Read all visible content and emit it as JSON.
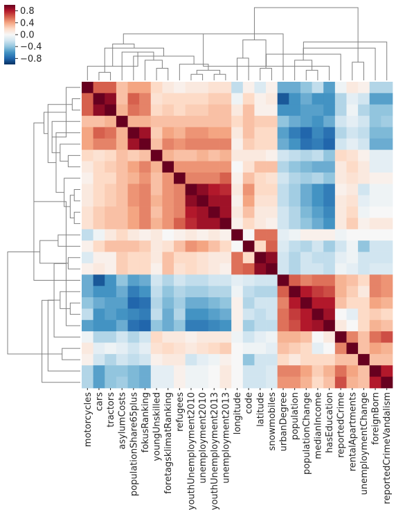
{
  "chart_data": {
    "type": "heatmap",
    "title": "",
    "labels": [
      "motorcycles",
      "cars",
      "tractors",
      "asylumCosts",
      "populationShare65plus",
      "fokusRanking",
      "youngUnskilled",
      "foretagsklimatRanking",
      "refugees",
      "youthUnemployment2010",
      "unemployment2010",
      "youthUnemployment2013",
      "unemployment2013",
      "longitude",
      "code",
      "latitude",
      "snowmobiles",
      "urbanDegree",
      "population",
      "populationChange",
      "medianIncome",
      "hasEducation",
      "reportedCrime",
      "rentalApartments",
      "unemploymentChange",
      "foreignBorn",
      "reportedCrimeVandalism"
    ],
    "x_tick_labels": [
      "motorcycles",
      "cars",
      "tractors",
      "asylumCosts",
      "populationShare65plus",
      "fokusRanking",
      "youngUnskilled",
      "foretagsklimatRanking",
      "refugees",
      "youthUnemployment2010",
      "unemployment2010",
      "youthUnemployment2013",
      "unemployment2013",
      "longitude",
      "code",
      "latitude",
      "snowmobiles",
      "urbanDegree",
      "population",
      "populationChange",
      "medianIncome",
      "hasEducation",
      "reportedCrime",
      "rentalApartments",
      "unemploymentChange",
      "foreignBorn",
      "reportedCrimeVandalism"
    ],
    "values": [
      [
        1.0,
        0.6,
        0.6,
        0.3,
        0.4,
        0.4,
        0.2,
        0.1,
        0.05,
        0.1,
        0.1,
        0.15,
        0.15,
        -0.25,
        0.05,
        -0.15,
        0.05,
        -0.5,
        -0.5,
        -0.4,
        -0.25,
        -0.55,
        -0.05,
        0.1,
        0.05,
        -0.3,
        -0.3
      ],
      [
        0.6,
        1.0,
        0.9,
        0.3,
        0.6,
        0.5,
        0.15,
        0.2,
        0.2,
        0.2,
        0.2,
        0.25,
        0.25,
        -0.05,
        0.2,
        0.05,
        0.1,
        -0.85,
        -0.6,
        -0.5,
        -0.6,
        -0.6,
        -0.3,
        -0.1,
        -0.2,
        -0.55,
        -0.55
      ],
      [
        0.6,
        0.9,
        1.0,
        0.35,
        0.55,
        0.5,
        0.2,
        0.25,
        0.2,
        0.25,
        0.25,
        0.3,
        0.3,
        0.1,
        0.3,
        0.05,
        0.05,
        -0.6,
        -0.6,
        -0.55,
        -0.55,
        -0.6,
        -0.3,
        -0.05,
        -0.3,
        -0.4,
        -0.4
      ],
      [
        0.3,
        0.3,
        0.35,
        1.0,
        0.35,
        0.35,
        0.3,
        0.3,
        0.3,
        0.3,
        0.3,
        0.3,
        0.3,
        0.2,
        0.3,
        0.25,
        0.25,
        -0.4,
        -0.5,
        -0.55,
        -0.6,
        -0.5,
        -0.2,
        -0.1,
        -0.2,
        -0.4,
        -0.35
      ],
      [
        0.4,
        0.6,
        0.55,
        0.35,
        1.0,
        0.85,
        0.25,
        0.4,
        0.35,
        0.45,
        0.45,
        0.4,
        0.4,
        0.1,
        0.3,
        0.2,
        0.2,
        -0.55,
        -0.7,
        -0.8,
        -0.65,
        -0.75,
        -0.3,
        -0.2,
        -0.25,
        -0.45,
        -0.45
      ],
      [
        0.4,
        0.5,
        0.5,
        0.35,
        0.85,
        1.0,
        0.3,
        0.5,
        0.45,
        0.5,
        0.5,
        0.5,
        0.5,
        0.05,
        0.25,
        0.2,
        0.2,
        -0.5,
        -0.6,
        -0.75,
        -0.7,
        -0.8,
        -0.2,
        -0.1,
        -0.2,
        -0.5,
        -0.5
      ],
      [
        0.2,
        0.15,
        0.2,
        0.3,
        0.25,
        0.3,
        1.0,
        0.35,
        0.3,
        0.3,
        0.35,
        0.3,
        0.35,
        0.1,
        0.1,
        0.1,
        0.05,
        -0.2,
        -0.25,
        -0.3,
        -0.25,
        -0.4,
        0.2,
        0.15,
        0.05,
        -0.1,
        -0.1
      ],
      [
        0.1,
        0.2,
        0.25,
        0.3,
        0.4,
        0.5,
        0.35,
        1.0,
        0.45,
        0.45,
        0.45,
        0.45,
        0.45,
        0.0,
        0.15,
        0.3,
        0.3,
        -0.3,
        -0.4,
        -0.45,
        -0.5,
        -0.5,
        0.1,
        0.2,
        0.1,
        -0.1,
        -0.1
      ],
      [
        0.05,
        0.2,
        0.2,
        0.3,
        0.35,
        0.45,
        0.3,
        0.45,
        1.0,
        0.5,
        0.5,
        0.5,
        0.6,
        0.05,
        0.3,
        0.2,
        0.15,
        -0.2,
        -0.3,
        -0.35,
        -0.3,
        -0.4,
        0.1,
        0.15,
        0.1,
        0.05,
        0.05
      ],
      [
        0.1,
        0.2,
        0.25,
        0.3,
        0.45,
        0.5,
        0.3,
        0.45,
        0.5,
        1.0,
        0.9,
        0.8,
        0.75,
        0.1,
        0.45,
        0.2,
        0.2,
        -0.25,
        -0.35,
        -0.5,
        -0.6,
        -0.7,
        0.05,
        0.1,
        -0.2,
        -0.05,
        -0.05
      ],
      [
        0.1,
        0.2,
        0.25,
        0.3,
        0.45,
        0.5,
        0.35,
        0.45,
        0.5,
        0.9,
        1.0,
        0.85,
        0.85,
        0.05,
        0.4,
        0.15,
        0.15,
        -0.25,
        -0.35,
        -0.5,
        -0.6,
        -0.7,
        0.1,
        0.15,
        -0.1,
        -0.05,
        -0.05
      ],
      [
        0.15,
        0.25,
        0.3,
        0.3,
        0.4,
        0.5,
        0.3,
        0.45,
        0.5,
        0.8,
        0.85,
        1.0,
        0.85,
        0.1,
        0.3,
        0.1,
        0.1,
        -0.2,
        -0.3,
        -0.45,
        -0.55,
        -0.65,
        0.1,
        0.2,
        -0.05,
        0.0,
        0.0
      ],
      [
        0.15,
        0.25,
        0.3,
        0.3,
        0.4,
        0.5,
        0.35,
        0.45,
        0.6,
        0.75,
        0.85,
        0.85,
        1.0,
        0.05,
        0.2,
        0.1,
        0.05,
        -0.2,
        -0.3,
        -0.4,
        -0.5,
        -0.6,
        0.1,
        0.25,
        0.05,
        0.1,
        0.1
      ],
      [
        -0.25,
        -0.05,
        0.1,
        0.2,
        0.1,
        0.05,
        0.1,
        0.0,
        0.05,
        0.1,
        0.05,
        0.1,
        0.05,
        1.0,
        0.0,
        0.55,
        0.55,
        -0.1,
        -0.05,
        0.05,
        0.05,
        0.05,
        -0.05,
        0.0,
        0.0,
        0.0,
        0.0
      ],
      [
        0.05,
        0.2,
        0.3,
        0.3,
        0.3,
        0.25,
        0.1,
        0.15,
        0.3,
        0.45,
        0.4,
        0.3,
        0.2,
        0.0,
        1.0,
        0.2,
        0.6,
        -0.15,
        -0.25,
        -0.3,
        -0.2,
        -0.35,
        -0.2,
        -0.05,
        -0.4,
        -0.2,
        -0.2
      ],
      [
        -0.15,
        0.05,
        0.05,
        0.25,
        0.2,
        0.2,
        0.1,
        0.3,
        0.2,
        0.2,
        0.15,
        0.1,
        0.1,
        0.55,
        0.2,
        1.0,
        0.9,
        -0.2,
        -0.3,
        -0.2,
        -0.25,
        -0.25,
        -0.1,
        -0.05,
        -0.2,
        -0.2,
        -0.2
      ],
      [
        0.05,
        0.1,
        0.05,
        0.25,
        0.2,
        0.2,
        0.05,
        0.3,
        0.15,
        0.2,
        0.15,
        0.1,
        0.05,
        0.55,
        0.6,
        0.9,
        1.0,
        -0.2,
        -0.3,
        -0.2,
        -0.2,
        -0.25,
        -0.05,
        -0.1,
        -0.2,
        -0.15,
        -0.15
      ],
      [
        -0.5,
        -0.85,
        -0.6,
        -0.4,
        -0.55,
        -0.5,
        -0.2,
        -0.3,
        -0.2,
        -0.25,
        -0.25,
        -0.2,
        -0.2,
        -0.1,
        -0.15,
        -0.2,
        -0.2,
        1.0,
        0.6,
        0.5,
        0.55,
        0.55,
        0.35,
        0.3,
        0.2,
        0.5,
        0.45
      ],
      [
        -0.5,
        -0.6,
        -0.6,
        -0.5,
        -0.7,
        -0.6,
        -0.25,
        -0.4,
        -0.3,
        -0.35,
        -0.35,
        -0.3,
        -0.3,
        -0.05,
        -0.25,
        -0.3,
        -0.3,
        0.6,
        1.0,
        0.8,
        0.7,
        0.65,
        0.35,
        0.25,
        0.1,
        0.5,
        0.45
      ],
      [
        -0.4,
        -0.5,
        -0.55,
        -0.55,
        -0.8,
        -0.75,
        -0.3,
        -0.45,
        -0.35,
        -0.5,
        -0.5,
        -0.45,
        -0.4,
        0.05,
        -0.3,
        -0.2,
        -0.2,
        0.5,
        0.8,
        1.0,
        0.8,
        0.8,
        0.3,
        0.2,
        0.2,
        0.4,
        0.35
      ],
      [
        -0.25,
        -0.6,
        -0.55,
        -0.6,
        -0.65,
        -0.7,
        -0.25,
        -0.5,
        -0.3,
        -0.6,
        -0.6,
        -0.55,
        -0.5,
        0.05,
        -0.2,
        -0.25,
        -0.2,
        0.55,
        0.7,
        0.8,
        1.0,
        0.85,
        0.0,
        -0.1,
        0.2,
        0.25,
        0.2
      ],
      [
        -0.55,
        -0.6,
        -0.6,
        -0.5,
        -0.75,
        -0.8,
        -0.4,
        -0.5,
        -0.4,
        -0.7,
        -0.7,
        -0.65,
        -0.6,
        0.05,
        -0.35,
        -0.25,
        -0.25,
        0.55,
        0.65,
        0.8,
        0.85,
        1.0,
        0.1,
        0.0,
        0.2,
        0.35,
        0.3
      ],
      [
        -0.05,
        -0.3,
        -0.3,
        -0.2,
        -0.3,
        -0.2,
        0.2,
        0.1,
        0.1,
        0.05,
        0.1,
        0.1,
        0.1,
        -0.05,
        -0.2,
        -0.1,
        -0.05,
        0.35,
        0.35,
        0.3,
        0.0,
        0.1,
        1.0,
        0.5,
        0.3,
        0.55,
        0.65
      ],
      [
        0.1,
        -0.1,
        -0.05,
        -0.1,
        -0.2,
        -0.1,
        0.15,
        0.2,
        0.15,
        0.1,
        0.15,
        0.2,
        0.25,
        0.0,
        -0.05,
        -0.05,
        -0.1,
        0.3,
        0.25,
        0.2,
        -0.1,
        0.0,
        0.5,
        1.0,
        0.3,
        0.4,
        0.35
      ],
      [
        0.05,
        -0.2,
        -0.3,
        -0.2,
        -0.25,
        -0.2,
        0.05,
        0.1,
        0.1,
        -0.2,
        -0.1,
        -0.05,
        0.05,
        0.0,
        -0.4,
        -0.2,
        -0.2,
        0.2,
        0.1,
        0.2,
        0.2,
        0.2,
        0.3,
        0.3,
        1.0,
        0.3,
        0.3
      ],
      [
        -0.3,
        -0.55,
        -0.4,
        -0.4,
        -0.45,
        -0.5,
        -0.1,
        -0.1,
        0.05,
        -0.05,
        -0.05,
        0.0,
        0.1,
        0.0,
        -0.2,
        -0.2,
        -0.15,
        0.5,
        0.5,
        0.4,
        0.25,
        0.35,
        0.55,
        0.4,
        0.3,
        1.0,
        0.8
      ],
      [
        -0.3,
        -0.55,
        -0.4,
        -0.35,
        -0.45,
        -0.5,
        -0.1,
        -0.1,
        0.05,
        -0.05,
        -0.05,
        0.0,
        0.1,
        0.0,
        -0.2,
        -0.2,
        -0.15,
        0.45,
        0.45,
        0.35,
        0.2,
        0.3,
        0.65,
        0.35,
        0.3,
        0.8,
        1.0
      ]
    ],
    "colorbar": {
      "vmin": -1.0,
      "vmax": 1.0,
      "tick_labels": [
        "0.8",
        "0.4",
        "0.0",
        "−0.4",
        "−0.8"
      ],
      "tick_values": [
        0.8,
        0.4,
        0.0,
        -0.4,
        -0.8
      ],
      "colors": [
        "#053061",
        "#2166ac",
        "#4393c3",
        "#92c5de",
        "#d1e5f0",
        "#f7f7f7",
        "#fddbc7",
        "#f4a582",
        "#d6604d",
        "#b2182b",
        "#67001f"
      ]
    },
    "dendrogram_color": "#808080",
    "dendrogram": {
      "merges": [
        [
          9,
          10
        ],
        [
          11,
          12
        ],
        [
          27,
          28
        ],
        [
          6,
          7
        ],
        [
          29,
          8
        ],
        [
          30,
          5
        ],
        [
          4,
          31
        ],
        [
          3,
          32
        ],
        [
          1,
          2
        ],
        [
          34,
          0
        ],
        [
          35,
          33
        ],
        [
          13,
          14
        ],
        [
          15,
          16
        ],
        [
          36,
          37
        ],
        [
          38,
          39
        ],
        [
          40,
          17
        ],
        [
          19,
          20
        ],
        [
          21,
          42
        ],
        [
          43,
          18
        ],
        [
          44,
          22
        ],
        [
          23,
          24
        ],
        [
          45,
          25
        ],
        [
          46,
          26
        ],
        [
          47,
          41
        ]
      ],
      "heights": [
        0.3,
        0.3,
        0.5,
        0.6,
        0.8,
        1.0,
        1.2,
        1.4,
        0.4,
        0.7,
        1.6,
        1.1,
        0.6,
        1.8,
        2.0,
        2.3,
        0.5,
        0.7,
        1.0,
        1.3,
        0.9,
        1.6,
        1.9,
        3.6
      ]
    }
  }
}
